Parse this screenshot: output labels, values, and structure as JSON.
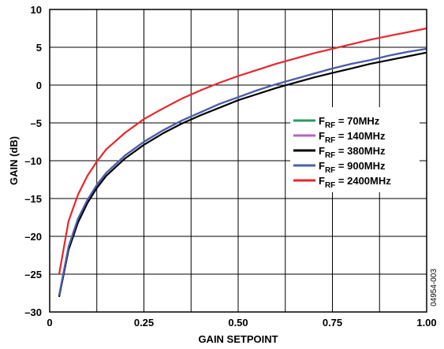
{
  "chart_data": {
    "type": "line",
    "xlabel": "GAIN SETPOINT",
    "ylabel": "GAIN (dB)",
    "xlim": [
      0,
      1.0
    ],
    "ylim": [
      -30,
      10
    ],
    "x_ticks": [
      {
        "value": 0,
        "label": "0"
      },
      {
        "value": 0.25,
        "label": "0.25"
      },
      {
        "value": 0.5,
        "label": "0.50"
      },
      {
        "value": 0.75,
        "label": "0.75"
      },
      {
        "value": 1.0,
        "label": "1.00"
      }
    ],
    "y_ticks": [
      {
        "value": 10,
        "label": "10"
      },
      {
        "value": 5,
        "label": "5"
      },
      {
        "value": 0,
        "label": "0"
      },
      {
        "value": -5,
        "label": "–5"
      },
      {
        "value": -10,
        "label": "–10"
      },
      {
        "value": -15,
        "label": "–15"
      },
      {
        "value": -20,
        "label": "–20"
      },
      {
        "value": -25,
        "label": "–25"
      },
      {
        "value": -30,
        "label": "–30"
      }
    ],
    "x_minor_grid": [
      0.125,
      0.375,
      0.625,
      0.875
    ],
    "grid": true,
    "legend_position": "right",
    "x": [
      0.025,
      0.05,
      0.075,
      0.1,
      0.125,
      0.15,
      0.2,
      0.25,
      0.3,
      0.35,
      0.4,
      0.45,
      0.5,
      0.55,
      0.6,
      0.65,
      0.7,
      0.75,
      0.8,
      0.85,
      0.9,
      0.95,
      1.0
    ],
    "series": [
      {
        "name_main": "F",
        "name_sub": "RF",
        "name_rest": " = 70MHz",
        "color": "#2e9a5a",
        "values": [
          -27.8,
          -21.4,
          -17.7,
          -15.2,
          -13.2,
          -11.6,
          -9.3,
          -7.5,
          -6.0,
          -4.7,
          -3.6,
          -2.5,
          -1.6,
          -0.7,
          0.1,
          0.8,
          1.5,
          2.2,
          2.8,
          3.3,
          3.9,
          4.4,
          4.8
        ]
      },
      {
        "name_main": "F",
        "name_sub": "RF",
        "name_rest": " = 140MHz",
        "color": "#b466c4",
        "values": [
          -27.8,
          -21.4,
          -17.7,
          -15.2,
          -13.2,
          -11.6,
          -9.3,
          -7.5,
          -6.0,
          -4.7,
          -3.6,
          -2.5,
          -1.6,
          -0.7,
          0.1,
          0.8,
          1.5,
          2.2,
          2.8,
          3.3,
          3.9,
          4.4,
          4.8
        ]
      },
      {
        "name_main": "F",
        "name_sub": "RF",
        "name_rest": " = 380MHz",
        "color": "#000000",
        "values": [
          -28.0,
          -21.8,
          -18.2,
          -15.6,
          -13.6,
          -12.0,
          -9.7,
          -7.9,
          -6.4,
          -5.1,
          -4.0,
          -3.0,
          -2.0,
          -1.2,
          -0.4,
          0.3,
          1.0,
          1.6,
          2.2,
          2.8,
          3.3,
          3.8,
          4.3
        ]
      },
      {
        "name_main": "F",
        "name_sub": "RF",
        "name_rest": " = 900MHz",
        "color": "#4b5fac",
        "values": [
          -27.8,
          -21.4,
          -17.7,
          -15.2,
          -13.2,
          -11.6,
          -9.3,
          -7.5,
          -6.0,
          -4.7,
          -3.6,
          -2.5,
          -1.6,
          -0.7,
          0.1,
          0.8,
          1.5,
          2.2,
          2.8,
          3.3,
          3.9,
          4.4,
          4.8
        ]
      },
      {
        "name_main": "F",
        "name_sub": "RF",
        "name_rest": " = 2400MHz",
        "color": "#e8262b",
        "values": [
          -25.0,
          -18.0,
          -14.5,
          -12.0,
          -10.1,
          -8.5,
          -6.3,
          -4.5,
          -3.1,
          -1.8,
          -0.7,
          0.3,
          1.2,
          2.0,
          2.8,
          3.5,
          4.2,
          4.8,
          5.4,
          6.0,
          6.5,
          7.0,
          7.5
        ]
      }
    ],
    "annotation": "04954-003"
  }
}
